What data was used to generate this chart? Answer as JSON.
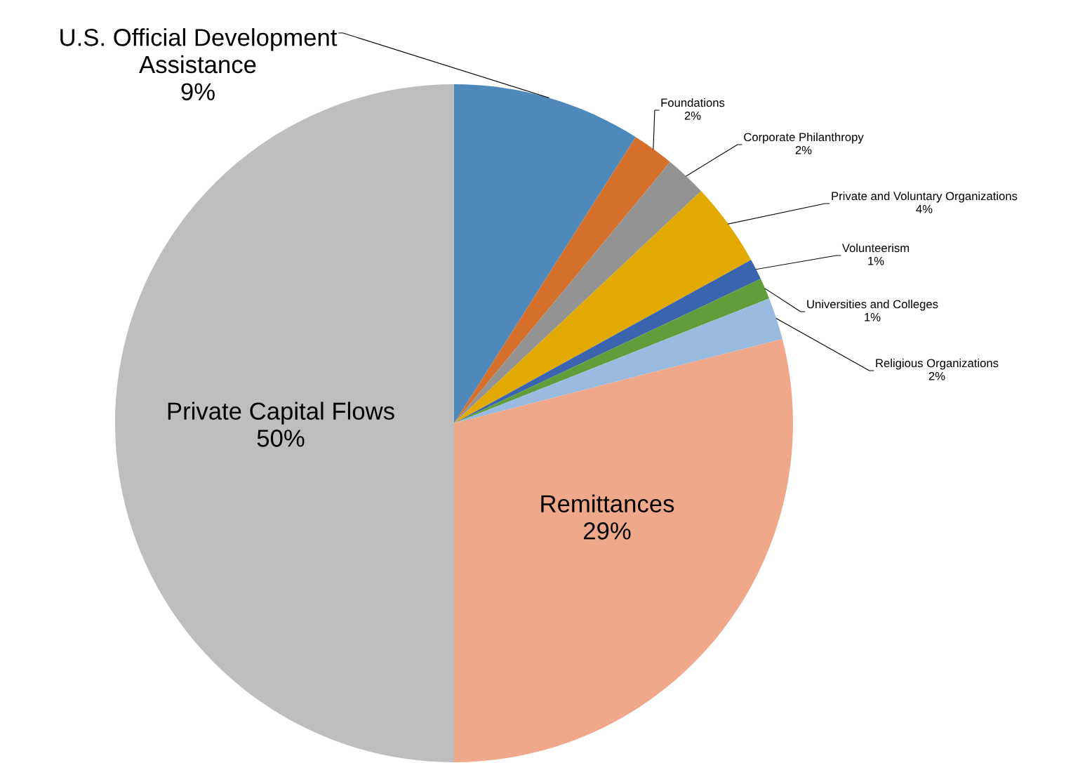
{
  "chart_data": {
    "type": "pie",
    "categories": [
      "U.S. Official Development Assistance",
      "Foundations",
      "Corporate Philanthropy",
      "Private and Voluntary Organizations",
      "Volunteerism",
      "Universities and Colleges",
      "Religious Organizations",
      "Remittances",
      "Private Capital Flows"
    ],
    "values": [
      9,
      2,
      2,
      4,
      1,
      1,
      2,
      29,
      50
    ],
    "value_labels": [
      "9%",
      "2%",
      "2%",
      "4%",
      "1%",
      "1%",
      "2%",
      "29%",
      "50%"
    ],
    "colors": [
      "#4f88bb",
      "#d4702c",
      "#939393",
      "#e2aa00",
      "#3a64ae",
      "#5f9e3a",
      "#9abbe0",
      "#f0a88b",
      "#bebebe"
    ],
    "legend": false
  }
}
